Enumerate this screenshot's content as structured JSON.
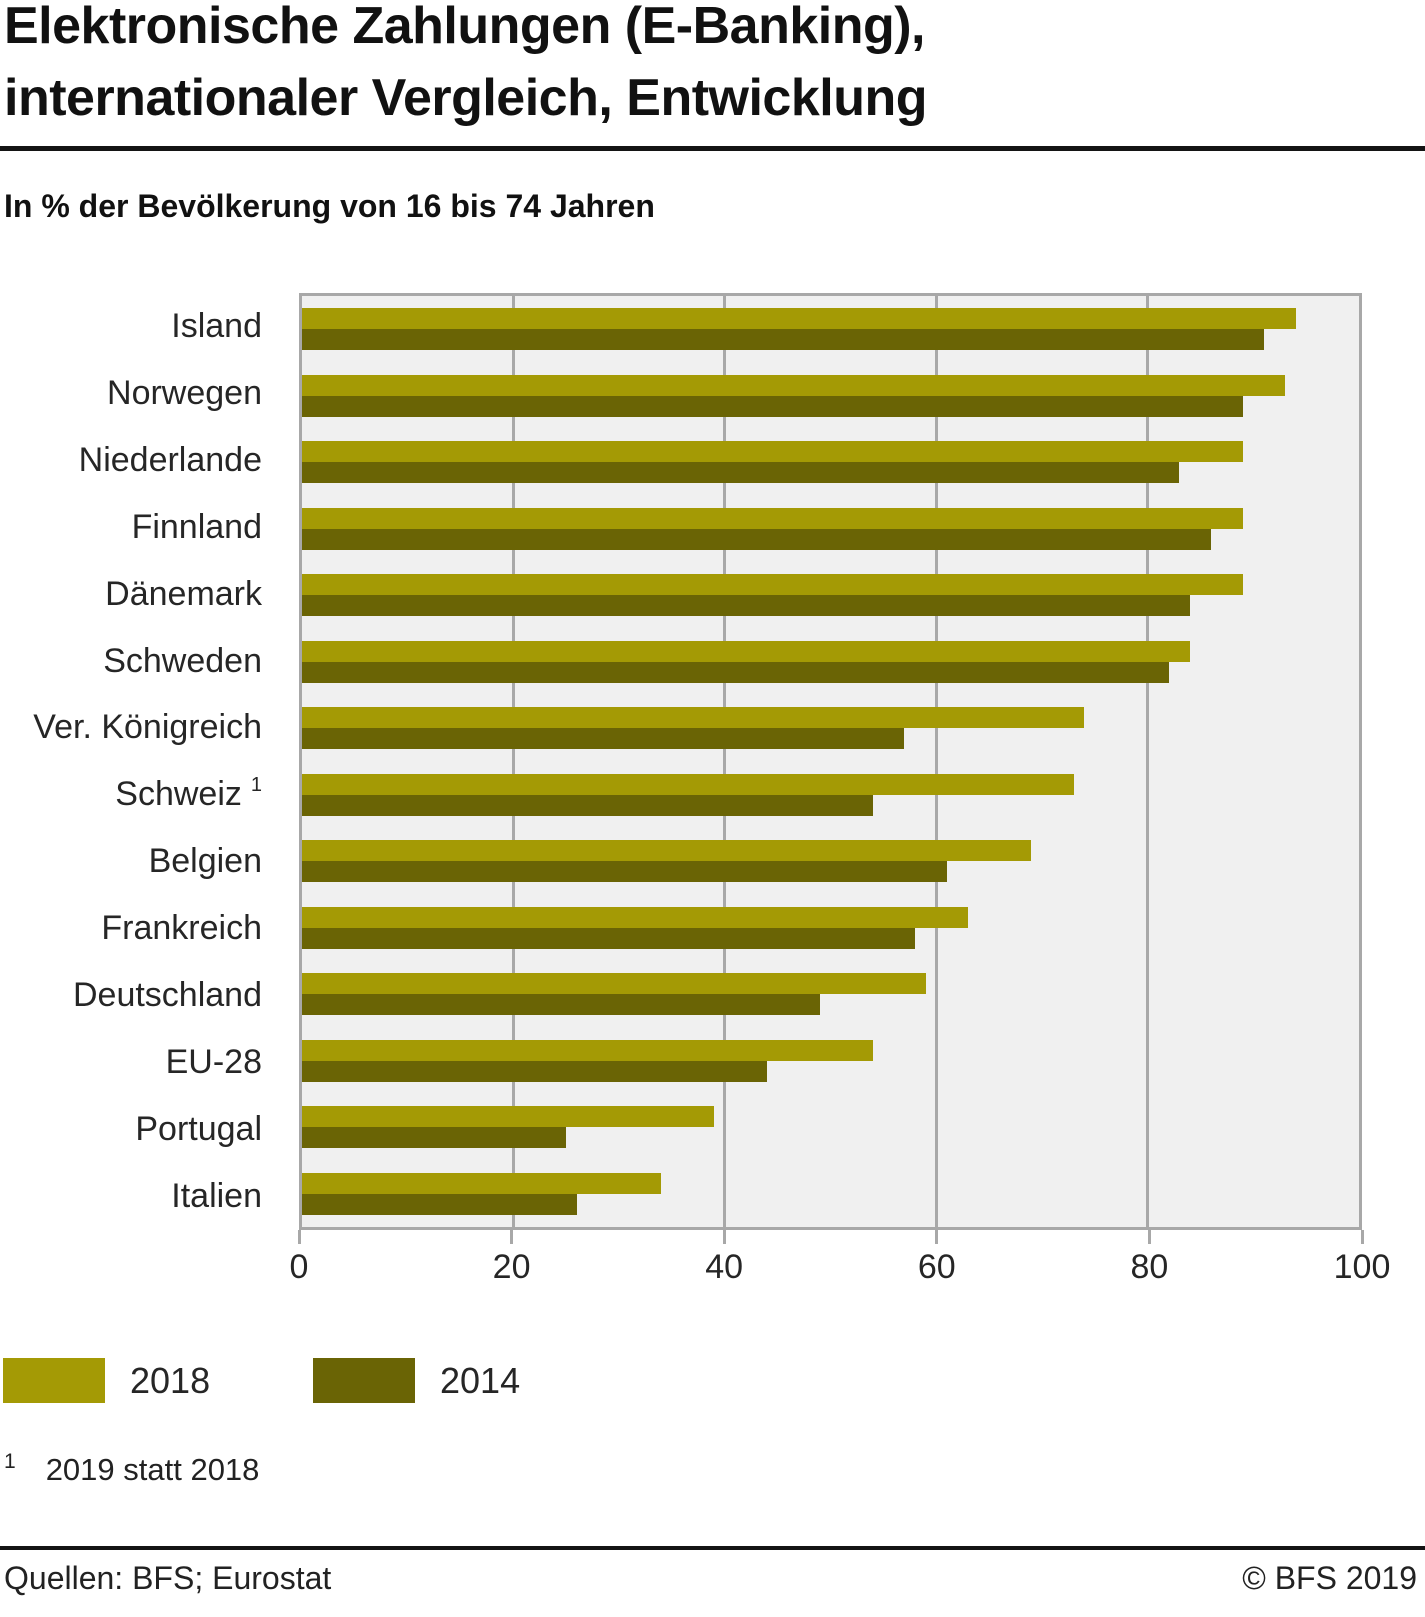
{
  "title": {
    "line1": "Elektronische Zahlungen (E-Banking),",
    "line2": "internationaler Vergleich, Entwicklung"
  },
  "subtitle": "In % der Bevölkerung von 16 bis 74 Jahren",
  "legend": {
    "items": [
      {
        "label": "2018",
        "color": "#a49a05"
      },
      {
        "label": "2014",
        "color": "#6a6405"
      }
    ]
  },
  "footnote": {
    "marker": "1",
    "text": "2019 statt 2018"
  },
  "footer": {
    "source": "Quellen: BFS; Eurostat",
    "copyright": "© BFS 2019"
  },
  "chart_data": {
    "type": "bar",
    "orientation": "horizontal",
    "title": "Elektronische Zahlungen (E-Banking), internationaler Vergleich, Entwicklung",
    "subtitle": "In % der Bevölkerung von 16 bis 74 Jahren",
    "categories": [
      "Island",
      "Norwegen",
      "Niederlande",
      "Finnland",
      "Dänemark",
      "Schweden",
      "Ver. Königreich",
      "Schweiz",
      "Belgien",
      "Frankreich",
      "Deutschland",
      "EU-28",
      "Portugal",
      "Italien"
    ],
    "category_footnotes": [
      "",
      "",
      "",
      "",
      "",
      "",
      "",
      "1",
      "",
      "",
      "",
      "",
      "",
      ""
    ],
    "series": [
      {
        "name": "2018",
        "color": "#a49a05",
        "values": [
          94,
          93,
          89,
          89,
          89,
          84,
          74,
          73,
          69,
          63,
          59,
          54,
          39,
          34
        ]
      },
      {
        "name": "2014",
        "color": "#6a6405",
        "values": [
          91,
          89,
          83,
          86,
          84,
          82,
          57,
          54,
          61,
          58,
          49,
          44,
          25,
          26
        ]
      }
    ],
    "xlim": [
      0,
      100
    ],
    "xticks": [
      0,
      20,
      40,
      60,
      80,
      100
    ],
    "grid": true,
    "plot_background": "#f0f0f0",
    "grid_color": "#a8a8a8",
    "legend_position": "bottom-left"
  }
}
